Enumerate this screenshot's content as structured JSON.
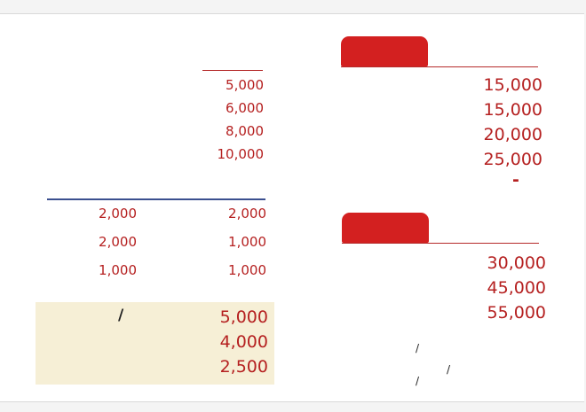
{
  "top_left_column": [
    "5,000",
    "6,000",
    "8,000",
    "10,000"
  ],
  "top_right_column": [
    "15,000",
    "15,000",
    "20,000",
    "25,000"
  ],
  "top_right_dash": "-",
  "middle_left_col1": [
    "2,000",
    "2,000",
    "1,000"
  ],
  "middle_left_col2": [
    "2,000",
    "1,000",
    "1,000"
  ],
  "middle_right_column": [
    "30,000",
    "45,000",
    "55,000"
  ],
  "bottom_left_slash": "/",
  "bottom_left_column": [
    "5,000",
    "4,000",
    "2,500"
  ],
  "bottom_right_slashes": [
    "/",
    "/",
    "/"
  ],
  "colors": {
    "accent_red": "#d32020",
    "text_red": "#b52020",
    "highlight_yellow": "#f6efd6",
    "rule_blue": "#3b4f8f"
  }
}
